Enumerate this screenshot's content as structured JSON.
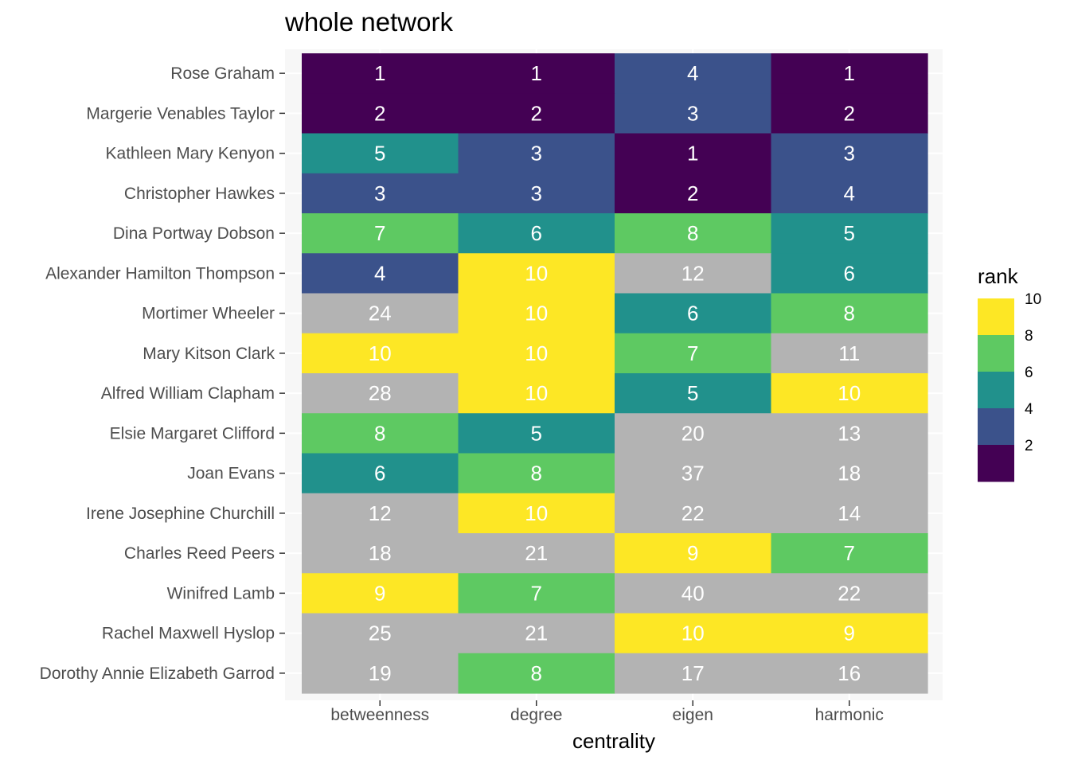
{
  "chart_data": {
    "type": "heatmap",
    "title": "whole network",
    "xlabel": "centrality",
    "ylabel": "",
    "x": [
      "betweenness",
      "degree",
      "eigen",
      "harmonic"
    ],
    "y": [
      "Rose Graham",
      "Margerie Venables Taylor",
      "Kathleen Mary Kenyon",
      "Christopher Hawkes",
      "Dina Portway Dobson",
      "Alexander Hamilton Thompson",
      "Mortimer Wheeler",
      "Mary Kitson Clark",
      "Alfred William Clapham",
      "Elsie Margaret Clifford",
      "Joan Evans",
      "Irene Josephine Churchill",
      "Charles Reed Peers",
      "Winifred Lamb",
      "Rachel Maxwell Hyslop",
      "Dorothy Annie Elizabeth Garrod"
    ],
    "values": [
      [
        1,
        1,
        4,
        1
      ],
      [
        2,
        2,
        3,
        2
      ],
      [
        5,
        3,
        1,
        3
      ],
      [
        3,
        3,
        2,
        4
      ],
      [
        7,
        6,
        8,
        5
      ],
      [
        4,
        10,
        12,
        6
      ],
      [
        24,
        10,
        6,
        8
      ],
      [
        10,
        10,
        7,
        11
      ],
      [
        28,
        10,
        5,
        10
      ],
      [
        8,
        5,
        20,
        13
      ],
      [
        6,
        8,
        37,
        18
      ],
      [
        12,
        10,
        22,
        14
      ],
      [
        18,
        21,
        9,
        7
      ],
      [
        9,
        7,
        40,
        22
      ],
      [
        25,
        21,
        10,
        9
      ],
      [
        19,
        8,
        17,
        16
      ]
    ],
    "legend": {
      "title": "rank",
      "placement": "right",
      "ticks": [
        10,
        8,
        6,
        4,
        2
      ],
      "range": [
        1,
        10
      ]
    },
    "colors": {
      "bins": [
        "#fde725",
        "#5ec962",
        "#21918c",
        "#3b528b",
        "#440154"
      ],
      "out_of_range": "#b3b3b3",
      "panel_background": "#f7f7f7",
      "grid": "#ffffff"
    },
    "grid": true
  }
}
